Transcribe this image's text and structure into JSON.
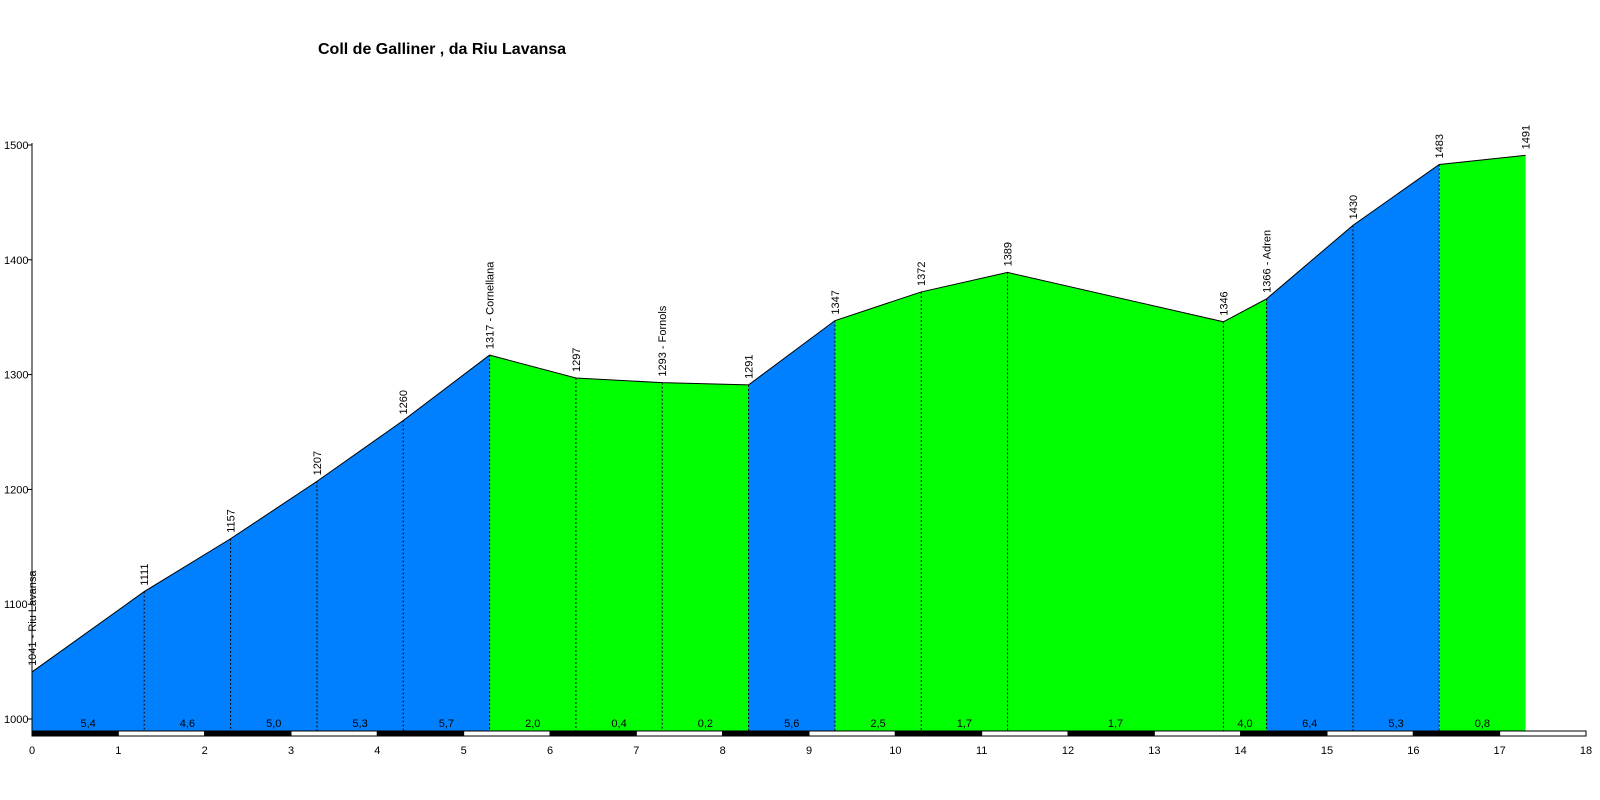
{
  "chart_data": {
    "type": "area",
    "title": "Coll de Galliner , da Riu Lavansa",
    "xlabel": "",
    "ylabel": "",
    "xlim": [
      0,
      18
    ],
    "ylim": [
      1000,
      1500
    ],
    "x_ticks": [
      0,
      1,
      2,
      3,
      4,
      5,
      6,
      7,
      8,
      9,
      10,
      11,
      12,
      13,
      14,
      15,
      16,
      17,
      18
    ],
    "y_ticks": [
      1000,
      1100,
      1200,
      1300,
      1400,
      1500
    ],
    "points": [
      {
        "x": 0,
        "y": 1041,
        "label": "1041 - Riu Lavansa"
      },
      {
        "x": 1.3,
        "y": 1111,
        "label": "1111"
      },
      {
        "x": 2.3,
        "y": 1157,
        "label": "1157"
      },
      {
        "x": 3.3,
        "y": 1207,
        "label": "1207"
      },
      {
        "x": 4.3,
        "y": 1260,
        "label": "1260"
      },
      {
        "x": 5.3,
        "y": 1317,
        "label": "1317 - Cornellana"
      },
      {
        "x": 6.3,
        "y": 1297,
        "label": "1297"
      },
      {
        "x": 7.3,
        "y": 1293,
        "label": "1293 - Fornols"
      },
      {
        "x": 8.3,
        "y": 1291,
        "label": "1291"
      },
      {
        "x": 9.3,
        "y": 1347,
        "label": "1347"
      },
      {
        "x": 10.3,
        "y": 1372,
        "label": "1372"
      },
      {
        "x": 11.3,
        "y": 1389,
        "label": "1389"
      },
      {
        "x": 13.8,
        "y": 1346,
        "label": "1346"
      },
      {
        "x": 14.3,
        "y": 1366,
        "label": "1366 - Adren"
      },
      {
        "x": 15.3,
        "y": 1430,
        "label": "1430"
      },
      {
        "x": 16.3,
        "y": 1483,
        "label": "1483"
      },
      {
        "x": 17.3,
        "y": 1491,
        "label": "1491"
      }
    ],
    "segments": [
      {
        "gradient": "5,4",
        "color": "#0080ff"
      },
      {
        "gradient": "4,6",
        "color": "#0080ff"
      },
      {
        "gradient": "5,0",
        "color": "#0080ff"
      },
      {
        "gradient": "5,3",
        "color": "#0080ff"
      },
      {
        "gradient": "5,7",
        "color": "#0080ff"
      },
      {
        "gradient": "2,0",
        "color": "#00ff00"
      },
      {
        "gradient": "0,4",
        "color": "#00ff00"
      },
      {
        "gradient": "0,2",
        "color": "#00ff00"
      },
      {
        "gradient": "5,6",
        "color": "#0080ff"
      },
      {
        "gradient": "2,5",
        "color": "#00ff00"
      },
      {
        "gradient": "1,7",
        "color": "#00ff00"
      },
      {
        "gradient": "1,7",
        "color": "#00ff00"
      },
      {
        "gradient": "4,0",
        "color": "#00ff00"
      },
      {
        "gradient": "6,4",
        "color": "#0080ff"
      },
      {
        "gradient": "5,3",
        "color": "#0080ff"
      },
      {
        "gradient": "0,8",
        "color": "#00ff00"
      }
    ],
    "colors": {
      "steep": "#0080ff",
      "gentle": "#00ff00",
      "outline": "#000000"
    }
  }
}
